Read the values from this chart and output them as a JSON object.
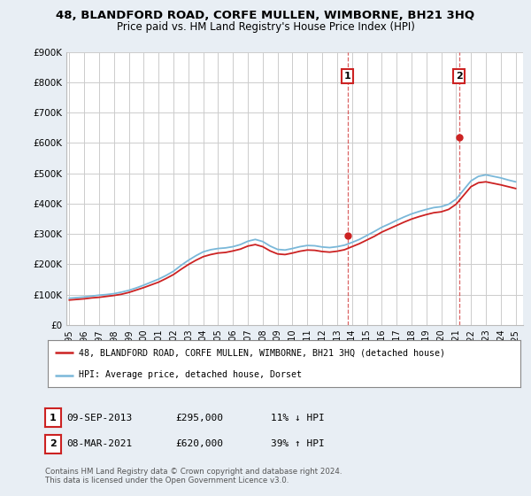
{
  "title": "48, BLANDFORD ROAD, CORFE MULLEN, WIMBORNE, BH21 3HQ",
  "subtitle": "Price paid vs. HM Land Registry's House Price Index (HPI)",
  "legend_line1": "48, BLANDFORD ROAD, CORFE MULLEN, WIMBORNE, BH21 3HQ (detached house)",
  "legend_line2": "HPI: Average price, detached house, Dorset",
  "annotation1_date": "09-SEP-2013",
  "annotation1_price": "£295,000",
  "annotation1_pct": "11% ↓ HPI",
  "annotation2_date": "08-MAR-2021",
  "annotation2_price": "£620,000",
  "annotation2_pct": "39% ↑ HPI",
  "footer": "Contains HM Land Registry data © Crown copyright and database right 2024.\nThis data is licensed under the Open Government Licence v3.0.",
  "hpi_color": "#7ab8d9",
  "price_color": "#cc2222",
  "vline_color": "#cc2222",
  "background_color": "#e8eef4",
  "plot_bg_color": "#ffffff",
  "grid_color": "#cccccc",
  "ylim": [
    0,
    900000
  ],
  "yticks": [
    0,
    100000,
    200000,
    300000,
    400000,
    500000,
    600000,
    700000,
    800000,
    900000
  ],
  "ytick_labels": [
    "£0",
    "£100K",
    "£200K",
    "£300K",
    "£400K",
    "£500K",
    "£600K",
    "£700K",
    "£800K",
    "£900K"
  ],
  "sale1_year": 2013.7,
  "sale1_value": 295000,
  "sale2_year": 2021.2,
  "sale2_value": 620000,
  "hpi_years": [
    1995.0,
    1995.5,
    1996.0,
    1996.5,
    1997.0,
    1997.5,
    1998.0,
    1998.5,
    1999.0,
    1999.5,
    2000.0,
    2000.5,
    2001.0,
    2001.5,
    2002.0,
    2002.5,
    2003.0,
    2003.5,
    2004.0,
    2004.5,
    2005.0,
    2005.5,
    2006.0,
    2006.5,
    2007.0,
    2007.5,
    2008.0,
    2008.5,
    2009.0,
    2009.5,
    2010.0,
    2010.5,
    2011.0,
    2011.5,
    2012.0,
    2012.5,
    2013.0,
    2013.5,
    2014.0,
    2014.5,
    2015.0,
    2015.5,
    2016.0,
    2016.5,
    2017.0,
    2017.5,
    2018.0,
    2018.5,
    2019.0,
    2019.5,
    2020.0,
    2020.5,
    2021.0,
    2021.5,
    2022.0,
    2022.5,
    2023.0,
    2023.5,
    2024.0,
    2024.5,
    2025.0
  ],
  "hpi_values": [
    88000,
    90000,
    92000,
    95000,
    98000,
    100000,
    103000,
    108000,
    114000,
    122000,
    131000,
    141000,
    151000,
    163000,
    177000,
    196000,
    213000,
    228000,
    241000,
    248000,
    252000,
    254000,
    258000,
    265000,
    276000,
    282000,
    275000,
    260000,
    249000,
    247000,
    252000,
    258000,
    262000,
    261000,
    257000,
    255000,
    258000,
    263000,
    272000,
    282000,
    295000,
    308000,
    322000,
    333000,
    345000,
    356000,
    366000,
    374000,
    381000,
    387000,
    390000,
    398000,
    415000,
    445000,
    475000,
    490000,
    495000,
    490000,
    485000,
    478000,
    472000
  ],
  "price_years": [
    1995.0,
    1995.5,
    1996.0,
    1996.5,
    1997.0,
    1997.5,
    1998.0,
    1998.5,
    1999.0,
    1999.5,
    2000.0,
    2000.5,
    2001.0,
    2001.5,
    2002.0,
    2002.5,
    2003.0,
    2003.5,
    2004.0,
    2004.5,
    2005.0,
    2005.5,
    2006.0,
    2006.5,
    2007.0,
    2007.5,
    2008.0,
    2008.5,
    2009.0,
    2009.5,
    2010.0,
    2010.5,
    2011.0,
    2011.5,
    2012.0,
    2012.5,
    2013.0,
    2013.5,
    2014.0,
    2014.5,
    2015.0,
    2015.5,
    2016.0,
    2016.5,
    2017.0,
    2017.5,
    2018.0,
    2018.5,
    2019.0,
    2019.5,
    2020.0,
    2020.5,
    2021.0,
    2021.5,
    2022.0,
    2022.5,
    2023.0,
    2023.5,
    2024.0,
    2024.5,
    2025.0
  ],
  "price_values": [
    82000,
    84000,
    86000,
    89000,
    91000,
    94000,
    97000,
    101000,
    107000,
    115000,
    123000,
    132000,
    141000,
    153000,
    166000,
    183000,
    199000,
    213000,
    225000,
    232000,
    237000,
    239000,
    244000,
    250000,
    260000,
    265000,
    258000,
    244000,
    234000,
    232000,
    237000,
    243000,
    247000,
    246000,
    242000,
    240000,
    243000,
    248000,
    258000,
    268000,
    280000,
    292000,
    306000,
    317000,
    328000,
    339000,
    349000,
    357000,
    364000,
    370000,
    373000,
    381000,
    398000,
    427000,
    456000,
    469000,
    472000,
    467000,
    462000,
    456000,
    450000
  ]
}
